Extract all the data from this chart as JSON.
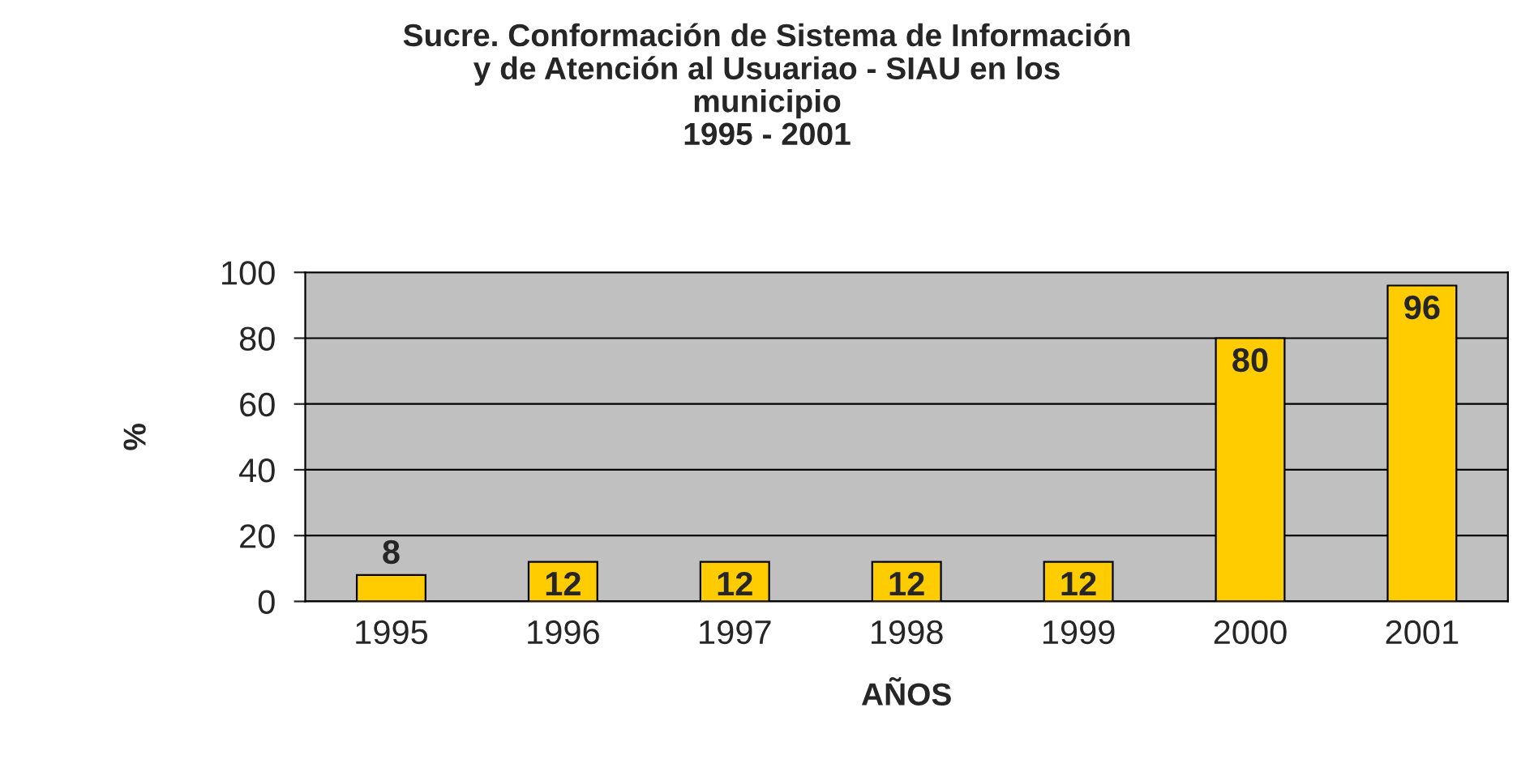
{
  "chart_data": {
    "type": "bar",
    "title": "Sucre. Conformación de Sistema de Información\ny de Atención al Usuariao - SIAU en los\nmunicipio\n1995 - 2001",
    "xlabel": "AÑOS",
    "ylabel": "%",
    "categories": [
      "1995",
      "1996",
      "1997",
      "1998",
      "1999",
      "2000",
      "2001"
    ],
    "values": [
      8,
      12,
      12,
      12,
      12,
      80,
      96
    ],
    "color": "#ffcc00",
    "ylim": [
      0,
      100
    ],
    "yticks": [
      0,
      20,
      40,
      60,
      80,
      100
    ],
    "grid": "y",
    "data_labels": true,
    "legend": false
  }
}
